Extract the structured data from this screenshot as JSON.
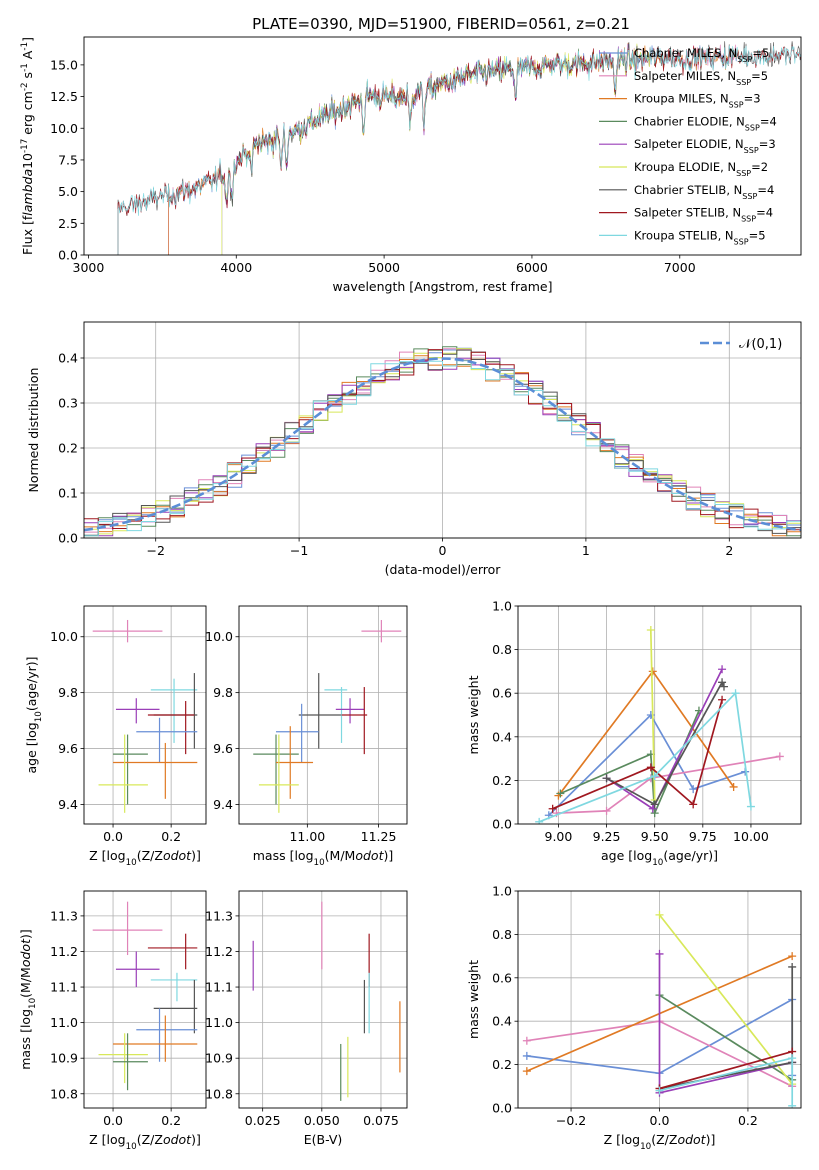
{
  "title": "PLATE=0390, MJD=51900, FIBERID=0561, z=0.21",
  "colors": {
    "Chabrier MILES": "#6a8fd6",
    "Salpeter MILES": "#e083b8",
    "Kroupa MILES": "#e07a24",
    "Chabrier ELODIE": "#5a8a5e",
    "Salpeter ELODIE": "#9a3fb8",
    "Kroupa ELODIE": "#d8e85a",
    "Chabrier STELIB": "#555555",
    "Salpeter STELIB": "#a01820",
    "Kroupa STELIB": "#7fd8e0",
    "normal": "#5b8ed6"
  },
  "chart_data": [
    {
      "type": "line",
      "id": "spectrum",
      "xlabel": "wavelength [Angstrom, rest frame]",
      "ylabel": "Flux [f$_\\lambda$10$^{-17}$ erg cm$^{-2}$ s$^{-1}$ A$^{-1}$]",
      "xlim": [
        2970,
        7820
      ],
      "ylim": [
        0,
        17.2
      ],
      "xticks": [
        3000,
        4000,
        5000,
        6000,
        7000
      ],
      "yticks": [
        0.0,
        2.5,
        5.0,
        7.5,
        10.0,
        12.5,
        15.0
      ],
      "legend_position": "top-right",
      "legend": [
        {
          "label": "Chabrier MILES, N",
          "sub": "SSP",
          "suffix": "=5"
        },
        {
          "label": "Salpeter MILES, N",
          "sub": "SSP",
          "suffix": "=5"
        },
        {
          "label": "Kroupa MILES, N",
          "sub": "SSP",
          "suffix": "=3"
        },
        {
          "label": "Chabrier ELODIE, N",
          "sub": "SSP",
          "suffix": "=4"
        },
        {
          "label": "Salpeter ELODIE, N",
          "sub": "SSP",
          "suffix": "=3"
        },
        {
          "label": "Kroupa ELODIE, N",
          "sub": "SSP",
          "suffix": "=2"
        },
        {
          "label": "Chabrier STELIB, N",
          "sub": "SSP",
          "suffix": "=4"
        },
        {
          "label": "Salpeter STELIB, N",
          "sub": "SSP",
          "suffix": "=4"
        },
        {
          "label": "Kroupa STELIB, N",
          "sub": "SSP",
          "suffix": "=5"
        }
      ],
      "continuum": {
        "x": [
          3200,
          3400,
          3600,
          3800,
          3950,
          4100,
          4300,
          4500,
          4700,
          4900,
          5100,
          5300,
          5500,
          5700,
          5900,
          6100,
          6300,
          6500,
          6700,
          6900,
          7100,
          7300,
          7500,
          7700
        ],
        "y": [
          3.6,
          4.3,
          4.9,
          5.6,
          6.6,
          8.6,
          9.3,
          10.4,
          11.5,
          12.6,
          12.4,
          13.1,
          13.9,
          14.5,
          14.7,
          15.0,
          15.1,
          15.3,
          15.4,
          15.6,
          15.5,
          15.7,
          15.7,
          15.8
        ]
      },
      "model_ranges": [
        {
          "name": "Chabrier MILES",
          "x": [
            3540,
            7400
          ]
        },
        {
          "name": "Salpeter MILES",
          "x": [
            3540,
            7400
          ]
        },
        {
          "name": "Kroupa MILES",
          "x": [
            3540,
            7400
          ]
        },
        {
          "name": "Chabrier ELODIE",
          "x": [
            3900,
            6800
          ]
        },
        {
          "name": "Salpeter ELODIE",
          "x": [
            3900,
            6800
          ]
        },
        {
          "name": "Kroupa ELODIE",
          "x": [
            3900,
            6800
          ]
        },
        {
          "name": "Chabrier STELIB",
          "x": [
            3200,
            7820
          ]
        },
        {
          "name": "Salpeter STELIB",
          "x": [
            3200,
            7820
          ]
        },
        {
          "name": "Kroupa STELIB",
          "x": [
            3200,
            7820
          ]
        }
      ]
    },
    {
      "type": "histogram",
      "id": "residuals",
      "xlabel": "(data-model)/error",
      "ylabel": "Normed distribution",
      "xlim": [
        -2.5,
        2.5
      ],
      "ylim": [
        0,
        0.48
      ],
      "xticks": [
        -2,
        -1,
        0,
        1,
        2
      ],
      "yticks": [
        0.0,
        0.1,
        0.2,
        0.3,
        0.4
      ],
      "grid": true,
      "bin_width": 0.1,
      "legend": "$\\mathcal{N}(0,1)$",
      "legend_position": "top-right"
    },
    {
      "type": "errorbar",
      "id": "age_vs_Z",
      "xlabel": "Z [log$_{10}$(Z/Z$_\\odot$)]",
      "ylabel": "age  [log$_{10}$(age/yr)]",
      "xlim": [
        -0.1,
        0.32
      ],
      "ylim": [
        9.33,
        10.11
      ],
      "xticks": [
        0.0,
        0.2
      ],
      "yticks": [
        9.4,
        9.6,
        9.8,
        10.0
      ],
      "grid": true,
      "points": [
        {
          "name": "Salpeter MILES",
          "x": 0.05,
          "y": 10.02,
          "xlo": -0.07,
          "xhi": 0.17,
          "ylo": 9.98,
          "yhi": 10.06
        },
        {
          "name": "Salpeter ELODIE",
          "x": 0.08,
          "y": 9.74,
          "xlo": 0.01,
          "xhi": 0.16,
          "ylo": 9.69,
          "yhi": 9.78
        },
        {
          "name": "Kroupa STELIB",
          "x": 0.21,
          "y": 9.81,
          "xlo": 0.13,
          "xhi": 0.29,
          "ylo": 9.62,
          "yhi": 9.85
        },
        {
          "name": "Chabrier STELIB",
          "x": 0.28,
          "y": 9.72,
          "xlo": 0.14,
          "xhi": 0.29,
          "ylo": 9.6,
          "yhi": 9.87
        },
        {
          "name": "Salpeter STELIB",
          "x": 0.25,
          "y": 9.72,
          "xlo": 0.12,
          "xhi": 0.28,
          "ylo": 9.58,
          "yhi": 9.77
        },
        {
          "name": "Chabrier MILES",
          "x": 0.16,
          "y": 9.66,
          "xlo": 0.08,
          "xhi": 0.29,
          "ylo": 9.55,
          "yhi": 9.71
        },
        {
          "name": "Chabrier ELODIE",
          "x": 0.05,
          "y": 9.58,
          "xlo": 0.0,
          "xhi": 0.12,
          "ylo": 9.4,
          "yhi": 9.65
        },
        {
          "name": "Kroupa MILES",
          "x": 0.18,
          "y": 9.55,
          "xlo": 0.0,
          "xhi": 0.29,
          "ylo": 9.42,
          "yhi": 9.62
        },
        {
          "name": "Kroupa ELODIE",
          "x": 0.04,
          "y": 9.47,
          "xlo": -0.05,
          "xhi": 0.12,
          "ylo": 9.37,
          "yhi": 9.65
        }
      ]
    },
    {
      "type": "errorbar",
      "id": "age_vs_mass",
      "xlabel": "mass [log$_{10}$(M/M$_\\odot$)]",
      "ylabel": "",
      "xlim": [
        10.76,
        11.35
      ],
      "ylim": [
        9.33,
        10.11
      ],
      "xticks": [
        11.0,
        11.25
      ],
      "yticks": [
        9.4,
        9.6,
        9.8,
        10.0
      ],
      "grid": true,
      "points": [
        {
          "name": "Salpeter MILES",
          "x": 11.26,
          "y": 10.02,
          "xlo": 11.19,
          "xhi": 11.33,
          "ylo": 9.98,
          "yhi": 10.06
        },
        {
          "name": "Chabrier STELIB",
          "x": 11.04,
          "y": 9.72,
          "xlo": 10.97,
          "xhi": 11.12,
          "ylo": 9.6,
          "yhi": 9.87
        },
        {
          "name": "Kroupa STELIB",
          "x": 11.12,
          "y": 9.81,
          "xlo": 11.06,
          "xhi": 11.14,
          "ylo": 9.62,
          "yhi": 9.82
        },
        {
          "name": "Salpeter ELODIE",
          "x": 11.15,
          "y": 9.74,
          "xlo": 11.1,
          "xhi": 11.2,
          "ylo": 9.69,
          "yhi": 9.78
        },
        {
          "name": "Salpeter STELIB",
          "x": 11.2,
          "y": 9.72,
          "xlo": 11.12,
          "xhi": 11.21,
          "ylo": 9.58,
          "yhi": 9.82
        },
        {
          "name": "Chabrier MILES",
          "x": 10.98,
          "y": 9.66,
          "xlo": 10.89,
          "xhi": 11.04,
          "ylo": 9.55,
          "yhi": 9.76
        },
        {
          "name": "Chabrier ELODIE",
          "x": 10.89,
          "y": 9.58,
          "xlo": 10.81,
          "xhi": 10.97,
          "ylo": 9.4,
          "yhi": 9.65
        },
        {
          "name": "Kroupa MILES",
          "x": 10.94,
          "y": 9.55,
          "xlo": 10.89,
          "xhi": 11.02,
          "ylo": 9.42,
          "yhi": 9.68
        },
        {
          "name": "Kroupa ELODIE",
          "x": 10.9,
          "y": 9.47,
          "xlo": 10.83,
          "xhi": 10.97,
          "ylo": 9.37,
          "yhi": 9.65
        }
      ]
    },
    {
      "type": "line",
      "id": "weight_vs_age",
      "xlabel": "age  [log$_{10}$(age/yr)]",
      "ylabel": "mass weight",
      "xlim": [
        8.79,
        10.26
      ],
      "ylim": [
        0,
        1.0
      ],
      "xticks": [
        9.0,
        9.25,
        9.5,
        9.75,
        10.0
      ],
      "yticks": [
        0.0,
        0.2,
        0.4,
        0.6,
        0.8,
        1.0
      ],
      "grid": true,
      "series": [
        {
          "name": "Chabrier MILES",
          "x": [
            8.95,
            9.48,
            9.7,
            9.97
          ],
          "y": [
            0.04,
            0.5,
            0.16,
            0.24
          ]
        },
        {
          "name": "Salpeter MILES",
          "x": [
            8.99,
            9.25,
            9.48,
            10.15
          ],
          "y": [
            0.05,
            0.06,
            0.21,
            0.31
          ]
        },
        {
          "name": "Kroupa MILES",
          "x": [
            9.0,
            9.49,
            9.91
          ],
          "y": [
            0.13,
            0.7,
            0.17
          ]
        },
        {
          "name": "Chabrier ELODIE",
          "x": [
            9.01,
            9.48,
            9.5,
            9.73
          ],
          "y": [
            0.14,
            0.32,
            0.05,
            0.52
          ]
        },
        {
          "name": "Salpeter ELODIE",
          "x": [
            9.25,
            9.49,
            9.85
          ],
          "y": [
            0.21,
            0.07,
            0.71
          ]
        },
        {
          "name": "Kroupa ELODIE",
          "x": [
            9.48,
            9.5
          ],
          "y": [
            0.89,
            0.11
          ]
        },
        {
          "name": "Chabrier STELIB",
          "x": [
            9.25,
            9.5,
            9.85,
            9.86
          ],
          "y": [
            0.21,
            0.09,
            0.65,
            0.63
          ]
        },
        {
          "name": "Salpeter STELIB",
          "x": [
            8.97,
            9.48,
            9.7,
            9.85
          ],
          "y": [
            0.07,
            0.26,
            0.09,
            0.57
          ]
        },
        {
          "name": "Kroupa STELIB",
          "x": [
            8.9,
            9.5,
            9.92,
            10.0
          ],
          "y": [
            0.01,
            0.22,
            0.6,
            0.08
          ]
        }
      ]
    },
    {
      "type": "errorbar",
      "id": "mass_vs_Z",
      "xlabel": "Z [log$_{10}$(Z/Z$_\\odot$)]",
      "ylabel": "mass [log$_{10}$(M/M$_\\odot$)]",
      "xlim": [
        -0.1,
        0.32
      ],
      "ylim": [
        10.76,
        11.37
      ],
      "xticks": [
        0.0,
        0.2
      ],
      "yticks": [
        10.8,
        10.9,
        11.0,
        11.1,
        11.2,
        11.3
      ],
      "grid": true,
      "points": [
        {
          "name": "Salpeter MILES",
          "x": 0.05,
          "y": 11.26,
          "xlo": -0.07,
          "xhi": 0.17,
          "ylo": 11.19,
          "yhi": 11.34
        },
        {
          "name": "Salpeter STELIB",
          "x": 0.25,
          "y": 11.21,
          "xlo": 0.12,
          "xhi": 0.29,
          "ylo": 11.15,
          "yhi": 11.25
        },
        {
          "name": "Salpeter ELODIE",
          "x": 0.08,
          "y": 11.15,
          "xlo": 0.01,
          "xhi": 0.16,
          "ylo": 11.1,
          "yhi": 11.2
        },
        {
          "name": "Kroupa STELIB",
          "x": 0.22,
          "y": 11.12,
          "xlo": 0.13,
          "xhi": 0.29,
          "ylo": 11.06,
          "yhi": 11.14
        },
        {
          "name": "Chabrier STELIB",
          "x": 0.28,
          "y": 11.04,
          "xlo": 0.14,
          "xhi": 0.29,
          "ylo": 10.97,
          "yhi": 11.12
        },
        {
          "name": "Chabrier MILES",
          "x": 0.16,
          "y": 10.98,
          "xlo": 0.08,
          "xhi": 0.29,
          "ylo": 10.89,
          "yhi": 11.04
        },
        {
          "name": "Kroupa MILES",
          "x": 0.18,
          "y": 10.94,
          "xlo": 0.0,
          "xhi": 0.29,
          "ylo": 10.89,
          "yhi": 11.02
        },
        {
          "name": "Kroupa ELODIE",
          "x": 0.04,
          "y": 10.91,
          "xlo": -0.05,
          "xhi": 0.12,
          "ylo": 10.83,
          "yhi": 10.97
        },
        {
          "name": "Chabrier ELODIE",
          "x": 0.05,
          "y": 10.89,
          "xlo": 0.0,
          "xhi": 0.12,
          "ylo": 10.81,
          "yhi": 10.97
        }
      ]
    },
    {
      "type": "errorbar",
      "id": "mass_vs_ebv",
      "xlabel": "E(B-V)",
      "ylabel": "",
      "xlim": [
        0.015,
        0.086
      ],
      "ylim": [
        10.76,
        11.37
      ],
      "xticks": [
        0.025,
        0.05,
        0.075
      ],
      "yticks": [
        10.8,
        10.9,
        11.0,
        11.1,
        11.2,
        11.3
      ],
      "grid": true,
      "points": [
        {
          "name": "Salpeter MILES",
          "x": 0.05,
          "y": 11.26,
          "ylo": 11.15,
          "yhi": 11.34
        },
        {
          "name": "Salpeter ELODIE",
          "x": 0.021,
          "y": 11.15,
          "ylo": 11.09,
          "yhi": 11.23
        },
        {
          "name": "Salpeter STELIB",
          "x": 0.07,
          "y": 11.2,
          "ylo": 11.1,
          "yhi": 11.25
        },
        {
          "name": "Kroupa STELIB",
          "x": 0.07,
          "y": 11.12,
          "ylo": 10.97,
          "yhi": 11.14
        },
        {
          "name": "Chabrier STELIB",
          "x": 0.068,
          "y": 11.04,
          "ylo": 10.97,
          "yhi": 11.12
        },
        {
          "name": "Kroupa MILES",
          "x": 0.083,
          "y": 10.94,
          "ylo": 10.86,
          "yhi": 11.06
        },
        {
          "name": "Chabrier ELODIE",
          "x": 0.058,
          "y": 10.89,
          "ylo": 10.78,
          "yhi": 10.94
        },
        {
          "name": "Kroupa ELODIE",
          "x": 0.061,
          "y": 10.91,
          "ylo": 10.79,
          "yhi": 10.96
        }
      ]
    },
    {
      "type": "line",
      "id": "weight_vs_Z",
      "xlabel": "Z [log$_{10}$(Z/Z$_\\odot$)]",
      "ylabel": "mass weight",
      "xlim": [
        -0.32,
        0.32
      ],
      "ylim": [
        0,
        1.0
      ],
      "xticks": [
        -0.2,
        0.0,
        0.2
      ],
      "yticks": [
        0.0,
        0.2,
        0.4,
        0.6,
        0.8,
        1.0
      ],
      "grid": true,
      "series": [
        {
          "name": "Chabrier MILES",
          "x": [
            -0.3,
            0.0,
            0.3,
            0.3
          ],
          "y": [
            0.24,
            0.16,
            0.5,
            0.15
          ]
        },
        {
          "name": "Salpeter MILES",
          "x": [
            -0.3,
            0.0,
            0.3
          ],
          "y": [
            0.31,
            0.4,
            0.1
          ]
        },
        {
          "name": "Kroupa MILES",
          "x": [
            -0.3,
            0.3
          ],
          "y": [
            0.17,
            0.7
          ]
        },
        {
          "name": "Chabrier ELODIE",
          "x": [
            0.0,
            0.3
          ],
          "y": [
            0.52,
            0.13
          ]
        },
        {
          "name": "Salpeter ELODIE",
          "x": [
            0.0,
            0.0,
            0.3
          ],
          "y": [
            0.71,
            0.07,
            0.21
          ]
        },
        {
          "name": "Kroupa ELODIE",
          "x": [
            0.0,
            0.3
          ],
          "y": [
            0.89,
            0.11
          ]
        },
        {
          "name": "Chabrier STELIB",
          "x": [
            0.0,
            0.3,
            0.3
          ],
          "y": [
            0.09,
            0.21,
            0.65
          ]
        },
        {
          "name": "Salpeter STELIB",
          "x": [
            0.0,
            0.3
          ],
          "y": [
            0.09,
            0.26
          ]
        },
        {
          "name": "Kroupa STELIB",
          "x": [
            0.0,
            0.3,
            0.3
          ],
          "y": [
            0.08,
            0.23,
            0.01
          ]
        }
      ]
    }
  ]
}
